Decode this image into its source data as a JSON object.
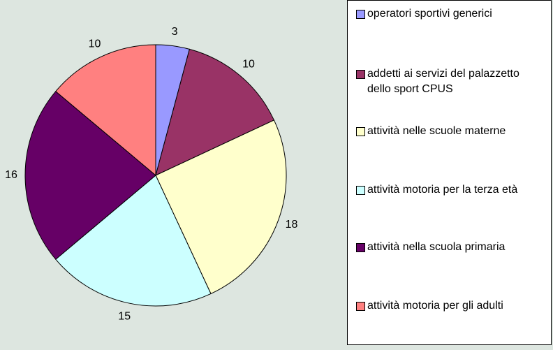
{
  "chart_data": {
    "type": "pie",
    "categories": [
      "operatori sportivi generici",
      "addetti ai servizi del palazzetto dello sport CPUS",
      "attività nelle scuole materne",
      "attività motoria per la terza età",
      "attività nella scuola primaria",
      "attività motoria per gli adulti"
    ],
    "values": [
      3,
      10,
      18,
      15,
      16,
      10
    ],
    "colors": [
      "#9999ff",
      "#993366",
      "#ffffcc",
      "#ccffff",
      "#660066",
      "#ff8080"
    ],
    "legend": "right"
  }
}
